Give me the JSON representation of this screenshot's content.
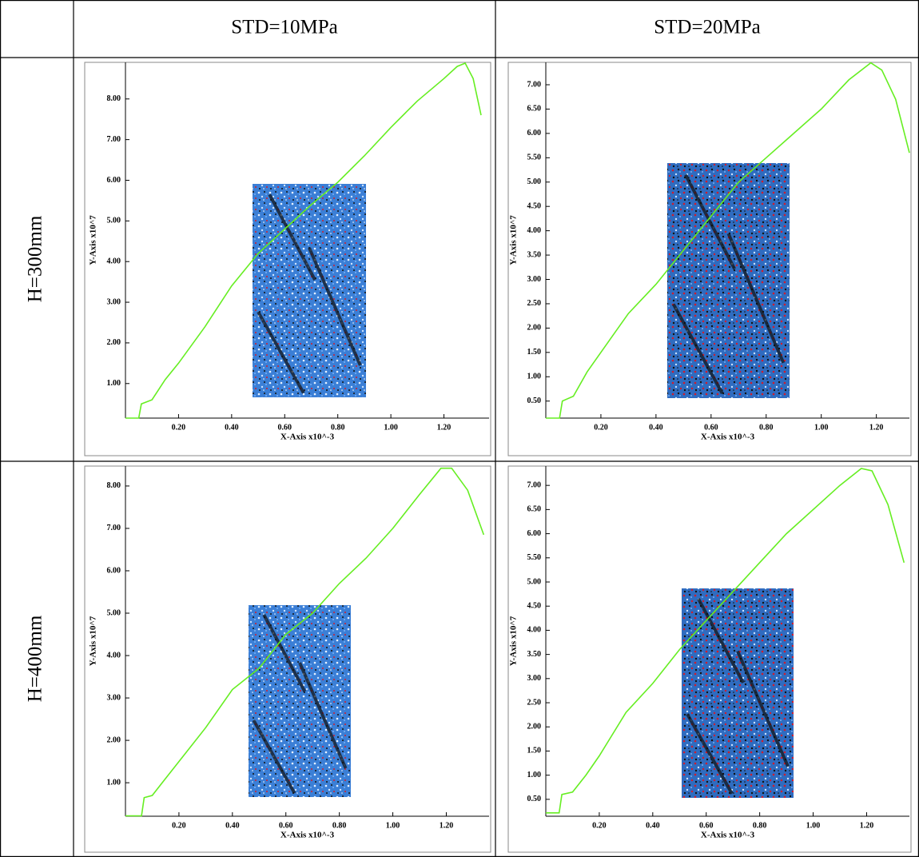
{
  "table": {
    "columns": [
      "STD=10MPa",
      "STD=20MPa"
    ],
    "rows": [
      "H=300mm",
      "H=400mm"
    ]
  },
  "chart_data": [
    {
      "type": "line",
      "xlabel": "X-Axis x10^-3",
      "ylabel": "Y-Axis x10^7",
      "color": "#66ee22",
      "x": [
        0,
        0.05,
        0.06,
        0.1,
        0.15,
        0.2,
        0.3,
        0.4,
        0.5,
        0.6,
        0.7,
        0.8,
        0.9,
        1.0,
        1.1,
        1.2,
        1.25,
        1.28,
        1.31,
        1.34
      ],
      "y": [
        0.15,
        0.15,
        0.5,
        0.6,
        1.1,
        1.5,
        2.4,
        3.4,
        4.2,
        4.8,
        5.4,
        5.95,
        6.6,
        7.3,
        7.95,
        8.5,
        8.8,
        8.88,
        8.5,
        7.6
      ],
      "xlim": [
        0,
        1.37
      ],
      "ylim": [
        0.15,
        8.9
      ],
      "xticks": [
        {
          "value": 0.2,
          "label": "0.20"
        },
        {
          "value": 0.4,
          "label": "0.40"
        },
        {
          "value": 0.6,
          "label": "0.60"
        },
        {
          "value": 0.8,
          "label": "0.80"
        },
        {
          "value": 1.0,
          "label": "1.00"
        },
        {
          "value": 1.2,
          "label": "1.20"
        }
      ],
      "yticks": [
        {
          "value": 1,
          "label": "1.00"
        },
        {
          "value": 2,
          "label": "2.00"
        },
        {
          "value": 3,
          "label": "3.00"
        },
        {
          "value": 4,
          "label": "4.00"
        },
        {
          "value": 5,
          "label": "5.00"
        },
        {
          "value": 6,
          "label": "6.00"
        },
        {
          "value": 7,
          "label": "7.00"
        },
        {
          "value": 8,
          "label": "8.00"
        }
      ]
    },
    {
      "type": "line",
      "xlabel": "X-Axis x10^-3",
      "ylabel": "Y-Axis x10^7",
      "color": "#66ee22",
      "x": [
        0,
        0.05,
        0.06,
        0.1,
        0.15,
        0.2,
        0.3,
        0.4,
        0.5,
        0.6,
        0.7,
        0.8,
        0.9,
        1.0,
        1.1,
        1.18,
        1.22,
        1.27,
        1.32
      ],
      "y": [
        0.15,
        0.15,
        0.5,
        0.6,
        1.1,
        1.5,
        2.3,
        2.9,
        3.6,
        4.3,
        5.0,
        5.5,
        6.0,
        6.5,
        7.1,
        7.45,
        7.3,
        6.7,
        5.6
      ],
      "xlim": [
        0,
        1.32
      ],
      "ylim": [
        0.15,
        7.46
      ],
      "xticks": [
        {
          "value": 0.2,
          "label": "0.20"
        },
        {
          "value": 0.4,
          "label": "0.40"
        },
        {
          "value": 0.6,
          "label": "0.60"
        },
        {
          "value": 0.8,
          "label": "0.80"
        },
        {
          "value": 1.0,
          "label": "1.00"
        },
        {
          "value": 1.2,
          "label": "1.20"
        }
      ],
      "yticks": [
        {
          "value": 0.5,
          "label": "0.50"
        },
        {
          "value": 1,
          "label": "1.00"
        },
        {
          "value": 1.5,
          "label": "1.50"
        },
        {
          "value": 2,
          "label": "2.00"
        },
        {
          "value": 2.5,
          "label": "2.50"
        },
        {
          "value": 3,
          "label": "3.00"
        },
        {
          "value": 3.5,
          "label": "3.50"
        },
        {
          "value": 4,
          "label": "4.00"
        },
        {
          "value": 4.5,
          "label": "4.50"
        },
        {
          "value": 5,
          "label": "5.00"
        },
        {
          "value": 5.5,
          "label": "5.50"
        },
        {
          "value": 6,
          "label": "6.00"
        },
        {
          "value": 6.5,
          "label": "6.50"
        },
        {
          "value": 7,
          "label": "7.00"
        }
      ]
    },
    {
      "type": "line",
      "xlabel": "X-Axis x10^-3",
      "ylabel": "Y-Axis x10^7",
      "color": "#66ee22",
      "x": [
        0,
        0.06,
        0.07,
        0.1,
        0.15,
        0.2,
        0.3,
        0.4,
        0.5,
        0.6,
        0.7,
        0.8,
        0.9,
        1.0,
        1.1,
        1.18,
        1.22,
        1.28,
        1.34
      ],
      "y": [
        0.22,
        0.22,
        0.65,
        0.7,
        1.1,
        1.5,
        2.3,
        3.2,
        3.7,
        4.5,
        5.0,
        5.7,
        6.3,
        7.0,
        7.8,
        8.42,
        8.42,
        7.9,
        6.85
      ],
      "xlim": [
        0,
        1.36
      ],
      "ylim": [
        0.21,
        8.47
      ],
      "xticks": [
        {
          "value": 0.2,
          "label": "0.20"
        },
        {
          "value": 0.4,
          "label": "0.40"
        },
        {
          "value": 0.6,
          "label": "0.60"
        },
        {
          "value": 0.8,
          "label": "0.80"
        },
        {
          "value": 1.0,
          "label": "1.00"
        },
        {
          "value": 1.2,
          "label": "1.20"
        }
      ],
      "yticks": [
        {
          "value": 1,
          "label": "1.00"
        },
        {
          "value": 2,
          "label": "2.00"
        },
        {
          "value": 3,
          "label": "3.00"
        },
        {
          "value": 4,
          "label": "4.00"
        },
        {
          "value": 5,
          "label": "5.00"
        },
        {
          "value": 6,
          "label": "6.00"
        },
        {
          "value": 7,
          "label": "7.00"
        },
        {
          "value": 8,
          "label": "8.00"
        }
      ]
    },
    {
      "type": "line",
      "xlabel": "X-Axis x10^-3",
      "ylabel": "Y-Axis x10^7",
      "color": "#66ee22",
      "x": [
        0,
        0.05,
        0.06,
        0.1,
        0.15,
        0.2,
        0.3,
        0.4,
        0.5,
        0.6,
        0.7,
        0.8,
        0.9,
        1.0,
        1.1,
        1.18,
        1.22,
        1.28,
        1.34
      ],
      "y": [
        0.22,
        0.22,
        0.6,
        0.65,
        1.0,
        1.4,
        2.3,
        2.9,
        3.6,
        4.2,
        4.8,
        5.4,
        6.0,
        6.5,
        7.0,
        7.35,
        7.3,
        6.6,
        5.4
      ],
      "xlim": [
        0,
        1.36
      ],
      "ylim": [
        0.15,
        7.4
      ],
      "xticks": [
        {
          "value": 0.2,
          "label": "0.20"
        },
        {
          "value": 0.4,
          "label": "0.40"
        },
        {
          "value": 0.6,
          "label": "0.60"
        },
        {
          "value": 0.8,
          "label": "0.80"
        },
        {
          "value": 1.0,
          "label": "1.00"
        },
        {
          "value": 1.2,
          "label": "1.20"
        }
      ],
      "yticks": [
        {
          "value": 0.5,
          "label": "0.50"
        },
        {
          "value": 1,
          "label": "1.00"
        },
        {
          "value": 1.5,
          "label": "1.50"
        },
        {
          "value": 2,
          "label": "2.00"
        },
        {
          "value": 2.5,
          "label": "2.50"
        },
        {
          "value": 3,
          "label": "3.00"
        },
        {
          "value": 3.5,
          "label": "3.50"
        },
        {
          "value": 4,
          "label": "4.00"
        },
        {
          "value": 4.5,
          "label": "4.50"
        },
        {
          "value": 5,
          "label": "5.00"
        },
        {
          "value": 5.5,
          "label": "5.50"
        },
        {
          "value": 6,
          "label": "6.00"
        },
        {
          "value": 6.5,
          "label": "6.50"
        },
        {
          "value": 7,
          "label": "7.00"
        }
      ]
    }
  ]
}
